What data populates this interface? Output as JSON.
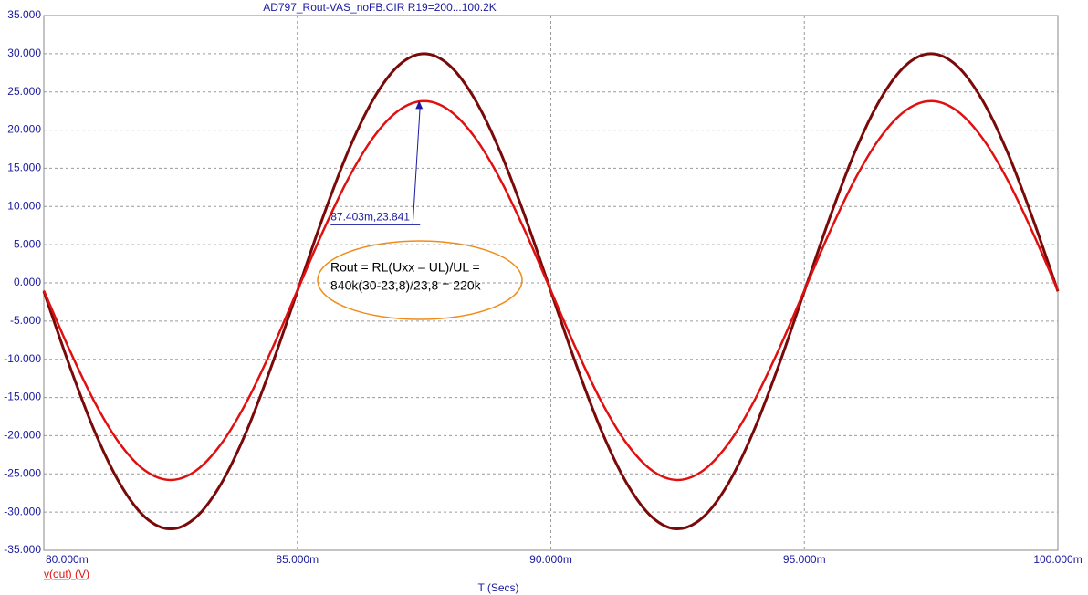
{
  "chart_data": {
    "type": "line",
    "title": "AD797_Rout-VAS_noFB.CIR R19=200...100.2K",
    "x_label": "T (Secs)",
    "x": [
      0.08,
      0.0805,
      0.081,
      0.0815,
      0.082,
      0.0825,
      0.083,
      0.0835,
      0.084,
      0.0845,
      0.085,
      0.0855,
      0.086,
      0.0865,
      0.087,
      0.0875,
      0.088,
      0.0885,
      0.089,
      0.0895,
      0.09,
      0.0905,
      0.091,
      0.0915,
      0.092,
      0.0925,
      0.093,
      0.0935,
      0.094,
      0.0945,
      0.095,
      0.0955,
      0.096,
      0.0965,
      0.097,
      0.0975,
      0.098,
      0.0985,
      0.099,
      0.0995,
      0.1
    ],
    "series": [
      {
        "color": "#7a0a0a",
        "values": [
          -1.1,
          -10.71,
          -19.39,
          -26.26,
          -30.68,
          -32.2,
          -30.68,
          -26.26,
          -19.39,
          -10.71,
          -1.1,
          8.51,
          17.19,
          24.06,
          28.48,
          30.0,
          28.48,
          24.06,
          17.19,
          8.51,
          -1.1,
          -10.71,
          -19.39,
          -26.26,
          -30.68,
          -32.2,
          -30.68,
          -26.26,
          -19.39,
          -10.71,
          -1.1,
          8.51,
          17.19,
          24.06,
          28.48,
          30.0,
          28.48,
          24.06,
          17.19,
          8.51,
          -1.1
        ]
      },
      {
        "name": "v(out) (V)",
        "color": "#e01010",
        "values": [
          -1.0,
          -8.66,
          -15.58,
          -21.06,
          -24.58,
          -25.8,
          -24.58,
          -21.06,
          -15.58,
          -8.66,
          -1.0,
          6.66,
          13.58,
          19.06,
          22.58,
          23.8,
          22.58,
          19.06,
          13.58,
          6.66,
          -1.0,
          -8.66,
          -15.58,
          -21.06,
          -24.58,
          -25.8,
          -24.58,
          -21.06,
          -15.58,
          -8.66,
          -1.0,
          6.66,
          13.58,
          19.06,
          22.58,
          23.8,
          22.58,
          19.06,
          13.58,
          6.66,
          -1.0
        ]
      }
    ],
    "xlim": [
      0.08,
      0.1
    ],
    "ylim": [
      -35,
      35
    ],
    "xticks": [
      {
        "value": 0.08,
        "label": "80.000m"
      },
      {
        "value": 0.085,
        "label": "85.000m"
      },
      {
        "value": 0.09,
        "label": "90.000m"
      },
      {
        "value": 0.095,
        "label": "95.000m"
      },
      {
        "value": 0.1,
        "label": "100.000m"
      }
    ],
    "yticks": [
      {
        "value": 35,
        "label": "35.000"
      },
      {
        "value": 30,
        "label": "30.000"
      },
      {
        "value": 25,
        "label": "25.000"
      },
      {
        "value": 20,
        "label": "20.000"
      },
      {
        "value": 15,
        "label": "15.000"
      },
      {
        "value": 10,
        "label": "10.000"
      },
      {
        "value": 5,
        "label": "5.000"
      },
      {
        "value": 0,
        "label": "0.000"
      },
      {
        "value": -5,
        "label": "-5.000"
      },
      {
        "value": -10,
        "label": "-10.000"
      },
      {
        "value": -15,
        "label": "-15.000"
      },
      {
        "value": -20,
        "label": "-20.000"
      },
      {
        "value": -25,
        "label": "-25.000"
      },
      {
        "value": -30,
        "label": "-30.000"
      },
      {
        "value": -35,
        "label": "-35.000"
      }
    ],
    "grid": true,
    "annotations": [
      {
        "x": 0.087403,
        "y": 23.841,
        "text": "87.403m,23.841"
      }
    ],
    "notes": [
      "Rout = RL(Uxx – UL)/UL =",
      "840k(30-23,8)/23,8 = 220k"
    ]
  }
}
